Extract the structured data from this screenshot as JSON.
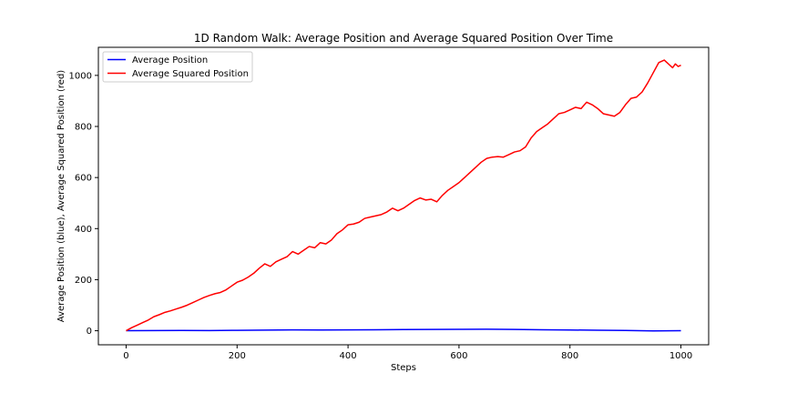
{
  "chart_data": {
    "type": "line",
    "title": "1D Random Walk: Average Position and Average Squared Position Over Time",
    "xlabel": "Steps",
    "ylabel": "Average Position (blue), Average Squared Position (red)",
    "xlim": [
      -50,
      1050
    ],
    "ylim": [
      -55,
      1110
    ],
    "xticks": [
      0,
      200,
      400,
      600,
      800,
      1000
    ],
    "yticks": [
      0,
      200,
      400,
      600,
      800,
      1000
    ],
    "grid": false,
    "legend": "upper-left",
    "series": [
      {
        "name": "Average Position",
        "color": "#0000ff",
        "x": [
          0,
          50,
          100,
          150,
          200,
          250,
          300,
          350,
          400,
          450,
          500,
          550,
          600,
          650,
          700,
          750,
          800,
          850,
          900,
          950,
          1000
        ],
        "y": [
          0,
          0.5,
          1.2,
          0.8,
          1.5,
          2.5,
          3.5,
          3.0,
          3.5,
          4.0,
          4.5,
          5.0,
          5.5,
          6.0,
          5.0,
          4.0,
          3.0,
          2.0,
          1.0,
          -0.5,
          0
        ]
      },
      {
        "name": "Average Squared Position",
        "color": "#ff0000",
        "x": [
          0,
          10,
          20,
          30,
          40,
          50,
          60,
          70,
          80,
          90,
          100,
          110,
          120,
          130,
          140,
          150,
          160,
          170,
          180,
          190,
          200,
          210,
          220,
          230,
          240,
          250,
          260,
          270,
          280,
          290,
          300,
          310,
          320,
          330,
          340,
          350,
          360,
          370,
          380,
          390,
          400,
          410,
          420,
          430,
          440,
          450,
          460,
          470,
          480,
          490,
          500,
          510,
          520,
          530,
          540,
          550,
          560,
          570,
          580,
          590,
          600,
          610,
          620,
          630,
          640,
          650,
          660,
          670,
          680,
          690,
          700,
          710,
          720,
          730,
          740,
          750,
          760,
          770,
          780,
          790,
          800,
          810,
          820,
          830,
          840,
          850,
          860,
          870,
          880,
          890,
          900,
          910,
          920,
          930,
          940,
          950,
          960,
          970,
          980,
          985,
          990,
          995,
          1000
        ],
        "y": [
          0,
          12,
          22,
          32,
          42,
          55,
          63,
          72,
          78,
          85,
          92,
          100,
          110,
          120,
          130,
          138,
          145,
          150,
          160,
          175,
          190,
          198,
          210,
          225,
          245,
          262,
          252,
          270,
          280,
          290,
          310,
          300,
          315,
          330,
          325,
          345,
          340,
          355,
          380,
          395,
          415,
          418,
          425,
          440,
          445,
          450,
          455,
          465,
          480,
          470,
          480,
          495,
          510,
          520,
          512,
          515,
          505,
          530,
          550,
          565,
          580,
          600,
          620,
          640,
          660,
          675,
          680,
          682,
          680,
          690,
          700,
          705,
          720,
          755,
          780,
          795,
          810,
          830,
          850,
          855,
          865,
          875,
          870,
          895,
          885,
          870,
          850,
          845,
          840,
          855,
          885,
          910,
          915,
          935,
          970,
          1010,
          1050,
          1060,
          1040,
          1030,
          1045,
          1035,
          1040
        ]
      }
    ]
  }
}
